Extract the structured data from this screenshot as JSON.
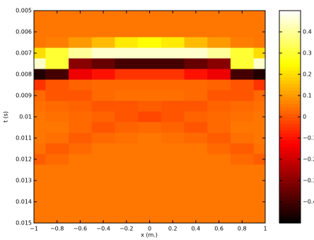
{
  "chart_data": {
    "type": "heatmap",
    "colormap": "hot",
    "clim": [
      -0.5,
      0.5
    ],
    "xlabel": "x (m.)",
    "ylabel": "t (s)",
    "x": [
      -1,
      -0.8,
      -0.6,
      -0.4,
      -0.2,
      0,
      0.2,
      0.4,
      0.6,
      0.8,
      1
    ],
    "y": [
      0.005,
      0.0055,
      0.006,
      0.0065,
      0.007,
      0.0075,
      0.008,
      0.0085,
      0.009,
      0.0095,
      0.01,
      0.0105,
      0.011,
      0.0115,
      0.012,
      0.0125,
      0.013,
      0.0135,
      0.014,
      0.0145,
      0.015
    ],
    "z": [
      [
        0.05,
        0.05,
        0.05,
        0.05,
        0.05,
        0.05,
        0.05,
        0.05,
        0.05,
        0.05,
        0.05
      ],
      [
        0.05,
        0.05,
        0.05,
        0.05,
        0.05,
        0.05,
        0.05,
        0.05,
        0.05,
        0.05,
        0.05
      ],
      [
        0.05,
        0.05,
        0.05,
        0.05,
        0.05,
        0.05,
        0.05,
        0.05,
        0.05,
        0.05,
        0.05
      ],
      [
        0.05,
        0.06,
        0.1,
        0.15,
        0.22,
        0.25,
        0.22,
        0.15,
        0.1,
        0.06,
        0.05
      ],
      [
        0.2,
        0.3,
        0.4,
        0.45,
        0.45,
        0.45,
        0.45,
        0.45,
        0.4,
        0.3,
        0.2
      ],
      [
        0.45,
        0.3,
        -0.3,
        -0.35,
        -0.4,
        -0.4,
        -0.4,
        -0.35,
        -0.3,
        0.3,
        0.45
      ],
      [
        -0.45,
        -0.4,
        -0.15,
        -0.1,
        -0.05,
        -0.05,
        -0.05,
        -0.1,
        -0.15,
        -0.4,
        -0.45
      ],
      [
        -0.05,
        0,
        0.02,
        0.03,
        0.03,
        0.03,
        0.03,
        0.03,
        0.02,
        0,
        -0.05
      ],
      [
        0.03,
        0,
        0,
        0.03,
        0.04,
        0.04,
        0.04,
        0.03,
        0,
        0,
        0.03
      ],
      [
        0.04,
        0.03,
        0.02,
        0,
        0,
        0.01,
        0,
        0,
        0.02,
        0.03,
        0.04
      ],
      [
        0.05,
        0.04,
        0.03,
        0.02,
        0,
        -0.02,
        0,
        0.02,
        0.03,
        0.04,
        0.05
      ],
      [
        0.05,
        0.05,
        0.03,
        0,
        0.02,
        0.03,
        0.02,
        0,
        0.03,
        0.05,
        0.05
      ],
      [
        0.05,
        0.04,
        0.01,
        0.03,
        0.04,
        0.05,
        0.04,
        0.03,
        0.01,
        0.04,
        0.05
      ],
      [
        0.04,
        0.01,
        0.03,
        0.05,
        0.05,
        0.05,
        0.05,
        0.05,
        0.03,
        0.01,
        0.04
      ],
      [
        0.01,
        0.03,
        0.05,
        0.05,
        0.05,
        0.05,
        0.05,
        0.05,
        0.05,
        0.03,
        0.01
      ],
      [
        0.05,
        0.05,
        0.05,
        0.05,
        0.05,
        0.05,
        0.05,
        0.05,
        0.05,
        0.05,
        0.05
      ],
      [
        0.05,
        0.05,
        0.05,
        0.05,
        0.05,
        0.05,
        0.05,
        0.05,
        0.05,
        0.05,
        0.05
      ],
      [
        0.05,
        0.05,
        0.05,
        0.05,
        0.05,
        0.05,
        0.05,
        0.05,
        0.05,
        0.05,
        0.05
      ],
      [
        0.05,
        0.05,
        0.05,
        0.05,
        0.05,
        0.05,
        0.05,
        0.05,
        0.05,
        0.05,
        0.05
      ],
      [
        0.05,
        0.05,
        0.05,
        0.05,
        0.05,
        0.05,
        0.05,
        0.05,
        0.05,
        0.05,
        0.05
      ],
      [
        0.05,
        0.05,
        0.05,
        0.05,
        0.05,
        0.05,
        0.05,
        0.05,
        0.05,
        0.05,
        0.05
      ]
    ],
    "xlim": [
      -1,
      1
    ],
    "ylim": [
      0.005,
      0.015
    ],
    "y_reversed": true,
    "xticks": [
      {
        "value": -1,
        "label": "−1"
      },
      {
        "value": -0.8,
        "label": "−0.8"
      },
      {
        "value": -0.6,
        "label": "−0.6"
      },
      {
        "value": -0.4,
        "label": "−0.4"
      },
      {
        "value": -0.2,
        "label": "−0.2"
      },
      0,
      0.2,
      0.4,
      0.6,
      0.8,
      1
    ],
    "yticks": [
      0.005,
      0.006,
      0.007,
      0.008,
      0.009,
      0.01,
      0.011,
      0.012,
      0.013,
      0.014,
      0.015
    ],
    "colorbar_ticks": [
      {
        "value": -0.4,
        "label": "−0.4"
      },
      {
        "value": -0.3,
        "label": "−0.3"
      },
      {
        "value": -0.2,
        "label": "−0.2"
      },
      {
        "value": -0.1,
        "label": "−0.1"
      },
      0,
      0.1,
      0.2,
      0.3,
      0.4
    ]
  }
}
